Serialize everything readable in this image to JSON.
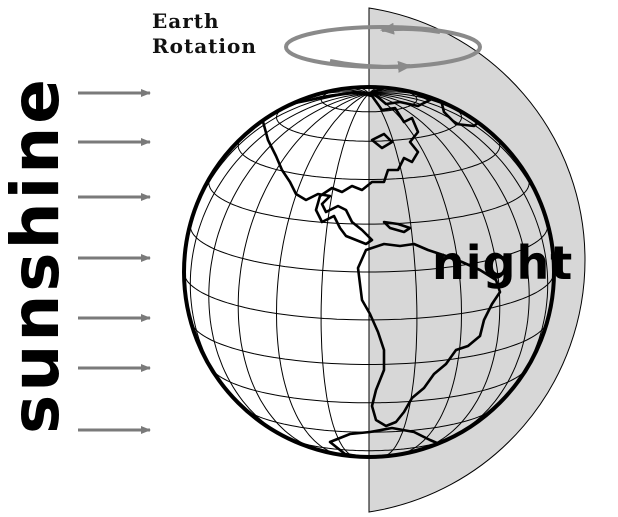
{
  "labels": {
    "rotation_line1": "Earth",
    "rotation_line2": "Rotation",
    "sunshine": "sunshine",
    "night": "night"
  },
  "colors": {
    "shadow": "#d7d7d7",
    "arrow": "#7a7a7a",
    "outline": "#000000",
    "day_side": "#ffffff"
  },
  "icons": {
    "sun_rays": "right-arrow-icon",
    "rotation": "circular-arrow-icon"
  }
}
